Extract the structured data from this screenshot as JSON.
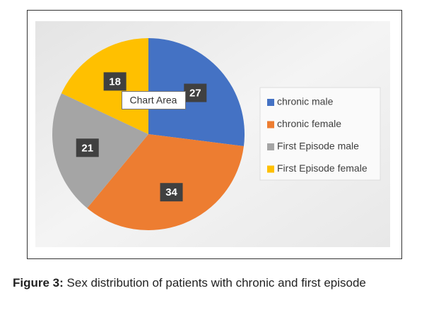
{
  "chart_data": {
    "type": "pie",
    "categories": [
      "chronic male",
      "chronic female",
      "First Episode male",
      "First Episode female"
    ],
    "values": [
      27,
      34,
      21,
      18
    ],
    "colors": [
      "#4472c4",
      "#ed7d31",
      "#a5a5a5",
      "#ffc000"
    ],
    "legend": "right",
    "tooltip": "Chart Area"
  },
  "caption": {
    "label": "Figure 3:",
    "text": "Sex distribution of patients with chronic and first episode"
  }
}
